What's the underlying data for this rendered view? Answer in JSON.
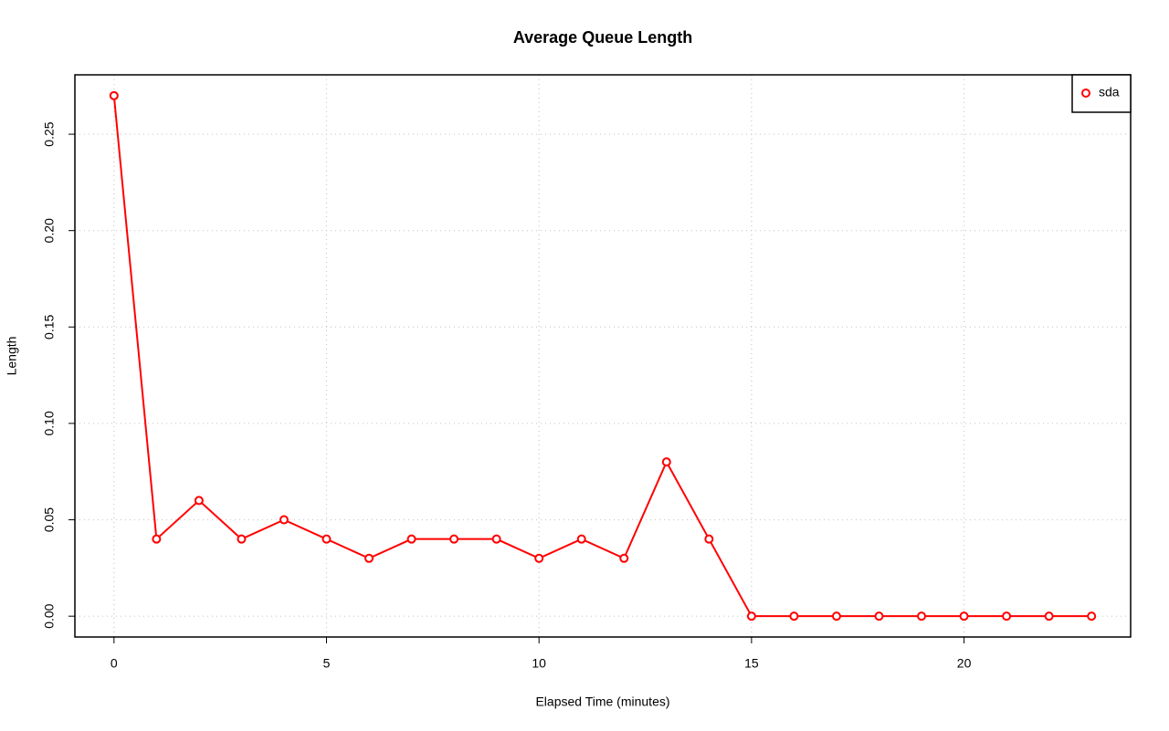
{
  "chart_data": {
    "type": "line",
    "title": "Average Queue Length",
    "x_label": "Elapsed Time (minutes)",
    "y_label": "Length",
    "x": [
      0,
      1,
      2,
      3,
      4,
      5,
      6,
      7,
      8,
      9,
      10,
      11,
      12,
      13,
      14,
      15,
      16,
      17,
      18,
      19,
      20,
      21,
      22,
      23
    ],
    "series": [
      {
        "name": "sda",
        "color": "#ff0000",
        "values": [
          0.27,
          0.04,
          0.06,
          0.04,
          0.05,
          0.04,
          0.03,
          0.04,
          0.04,
          0.04,
          0.03,
          0.04,
          0.03,
          0.08,
          0.04,
          0,
          0,
          0,
          0,
          0,
          0,
          0,
          0,
          0
        ]
      }
    ],
    "xlim": [
      -0.92,
      23.92
    ],
    "ylim": [
      -0.0108,
      0.2808
    ],
    "xticks": [
      0,
      5,
      10,
      15,
      20
    ],
    "yticks": [
      {
        "value": 0,
        "label": "0.00"
      },
      {
        "value": 0.05,
        "label": "0.05"
      },
      {
        "value": 0.1,
        "label": "0.10"
      },
      {
        "value": 0.15,
        "label": "0.15"
      },
      {
        "value": 0.2,
        "label": "0.20"
      },
      {
        "value": 0.25,
        "label": "0.25"
      }
    ],
    "grid": true,
    "legend_position": "top-right"
  }
}
